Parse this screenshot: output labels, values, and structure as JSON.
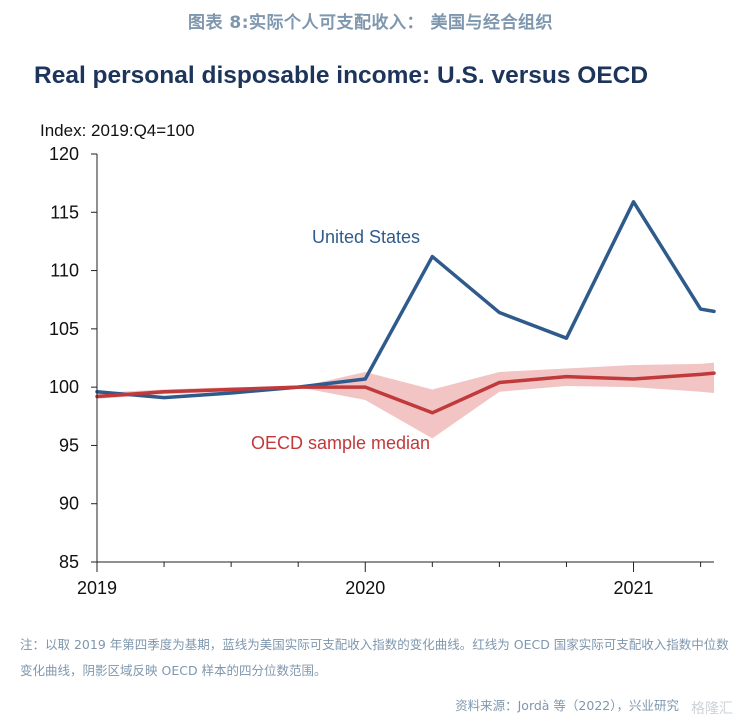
{
  "caption": "图表 8:实际个人可支配收入：  美国与经合组织",
  "note": "注：以取 2019 年第四季度为基期，蓝线为美国实际可支配收入指数的变化曲线。红线为 OECD 国家实际可支配收入指数中位数变化曲线，阴影区域反映 OECD 样本的四分位数范围。",
  "source": "资料来源：Jordà 等（2022），兴业研究",
  "watermark": "格隆汇",
  "colors": {
    "us": "#2f5b8c",
    "oecd": "#c0393b",
    "band": "#f2c4c4",
    "caption": "#7f97ae",
    "title": "#1d355b"
  },
  "chart_data": {
    "type": "line",
    "title": "Real personal disposable income: U.S. versus OECD",
    "ylabel": "Index: 2019:Q4=100",
    "ylim": [
      85,
      120
    ],
    "yticks": [
      85,
      90,
      95,
      100,
      105,
      110,
      115,
      120
    ],
    "xlim": [
      0,
      9.2
    ],
    "xticks": [
      {
        "x": 0,
        "label": "2019"
      },
      {
        "x": 4,
        "label": "2020"
      },
      {
        "x": 8,
        "label": "2021"
      }
    ],
    "minor_xticks": [
      1,
      2,
      3,
      5,
      6,
      7,
      9
    ],
    "x": [
      0,
      1,
      2,
      3,
      4,
      5,
      6,
      7,
      8,
      9,
      9.2
    ],
    "series": [
      {
        "name": "United States",
        "color": "#2f5b8c",
        "values": [
          99.6,
          99.1,
          99.5,
          100.0,
          100.7,
          111.2,
          106.4,
          104.2,
          115.9,
          106.7,
          106.5
        ]
      },
      {
        "name": "OECD sample median",
        "color": "#c0393b",
        "values": [
          99.2,
          99.6,
          99.8,
          100.0,
          100.0,
          97.8,
          100.4,
          100.9,
          100.7,
          101.1,
          101.2
        ],
        "band_low": [
          99.0,
          99.4,
          99.6,
          100.0,
          98.9,
          95.6,
          99.6,
          100.1,
          100.0,
          99.6,
          99.5
        ],
        "band_high": [
          99.5,
          99.8,
          100.0,
          100.0,
          101.3,
          99.8,
          101.3,
          101.6,
          101.9,
          102.0,
          102.1
        ]
      }
    ]
  }
}
